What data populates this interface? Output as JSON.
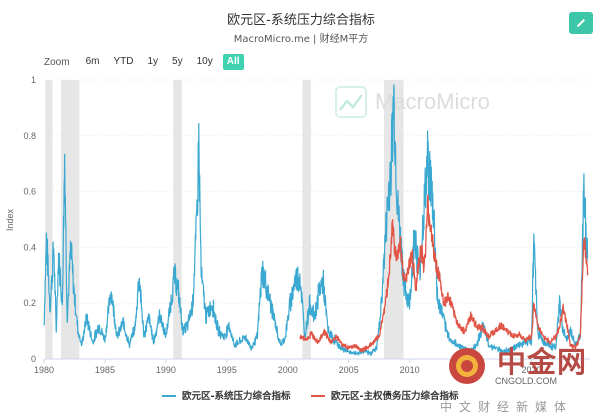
{
  "header": {
    "title": "欧元区-系统压力综合指标",
    "subtitle": "MacroMicro.me | 财经M平方"
  },
  "toolbar": {
    "zoom_label": "Zoom",
    "ranges": [
      {
        "label": "6m",
        "active": false
      },
      {
        "label": "YTD",
        "active": false
      },
      {
        "label": "1y",
        "active": false
      },
      {
        "label": "5y",
        "active": false
      },
      {
        "label": "10y",
        "active": false
      },
      {
        "label": "All",
        "active": true
      }
    ]
  },
  "watermark": {
    "brand": "MacroMicro",
    "logo_text": "中金网",
    "logo_url": "CNGOLD.COM",
    "footer_text": "中文财经新媒体"
  },
  "colors": {
    "series1": "#3aa8d0",
    "series2": "#e05546",
    "recession": "#e6e6e6",
    "accent": "#3ec6a8"
  },
  "chart_data": {
    "type": "line",
    "ylabel": "Index",
    "xlabel": "",
    "ylim": [
      0,
      1
    ],
    "xlim": [
      1980,
      2024.8
    ],
    "x_ticks": [
      1980,
      1985,
      1990,
      1995,
      2000,
      2005,
      2010,
      2015,
      2020
    ],
    "x_tick_labels": [
      "1980",
      "1985",
      "1990",
      "1995",
      "2000",
      "2005",
      "2010",
      "2015",
      "2020"
    ],
    "y_ticks": [
      0,
      0.2,
      0.4,
      0.6,
      0.8,
      1
    ],
    "y_tick_labels": [
      "0",
      "0.2",
      "0.4",
      "0.6",
      "0.8",
      "1"
    ],
    "legend_position": "bottom",
    "recession_bands": [
      [
        1980.1,
        1980.7
      ],
      [
        1981.4,
        1982.9
      ],
      [
        1990.6,
        1991.3
      ],
      [
        2001.2,
        2001.9
      ],
      [
        2007.9,
        2009.5
      ]
    ],
    "series": [
      {
        "name": "欧元区-系统压力综合指标",
        "x": [
          1980.0,
          1980.2,
          1980.5,
          1980.8,
          1981.0,
          1981.2,
          1981.5,
          1981.7,
          1981.9,
          1982.2,
          1982.5,
          1982.8,
          1983.1,
          1983.5,
          1984.0,
          1984.5,
          1985.0,
          1985.5,
          1986.0,
          1986.5,
          1987.0,
          1987.5,
          1987.8,
          1988.2,
          1988.6,
          1989.0,
          1989.5,
          1990.0,
          1990.4,
          1990.7,
          1991.0,
          1991.4,
          1991.8,
          1992.2,
          1992.5,
          1992.7,
          1992.9,
          1993.3,
          1993.8,
          1994.3,
          1994.8,
          1995.2,
          1995.6,
          1996.0,
          1996.5,
          1997.0,
          1997.5,
          1997.9,
          1998.3,
          1998.7,
          1999.0,
          1999.4,
          1999.8,
          2000.2,
          2000.6,
          2001.0,
          2001.4,
          2001.8,
          2002.2,
          2002.6,
          2002.9,
          2003.3,
          2003.8,
          2004.3,
          2004.8,
          2005.3,
          2005.8,
          2006.3,
          2006.8,
          2007.3,
          2007.6,
          2007.9,
          2008.2,
          2008.5,
          2008.7,
          2008.8,
          2009.0,
          2009.3,
          2009.6,
          2010.0,
          2010.4,
          2010.8,
          2011.2,
          2011.5,
          2011.8,
          2012.0,
          2012.3,
          2012.6,
          2013.0,
          2013.5,
          2014.0,
          2014.5,
          2015.0,
          2015.5,
          2016.0,
          2016.5,
          2017.0,
          2017.5,
          2018.0,
          2018.5,
          2019.0,
          2019.5,
          2020.0,
          2020.2,
          2020.5,
          2021.0,
          2021.5,
          2022.0,
          2022.3,
          2022.6,
          2022.9,
          2023.2,
          2023.6,
          2024.0,
          2024.3,
          2024.6
        ],
        "values": [
          0.12,
          0.43,
          0.18,
          0.4,
          0.1,
          0.38,
          0.2,
          0.74,
          0.15,
          0.4,
          0.22,
          0.1,
          0.05,
          0.15,
          0.06,
          0.12,
          0.07,
          0.25,
          0.08,
          0.13,
          0.05,
          0.12,
          0.3,
          0.08,
          0.15,
          0.06,
          0.16,
          0.08,
          0.2,
          0.3,
          0.25,
          0.1,
          0.12,
          0.2,
          0.45,
          0.77,
          0.3,
          0.15,
          0.2,
          0.1,
          0.08,
          0.12,
          0.05,
          0.06,
          0.08,
          0.04,
          0.08,
          0.32,
          0.25,
          0.18,
          0.12,
          0.05,
          0.08,
          0.2,
          0.28,
          0.3,
          0.08,
          0.2,
          0.15,
          0.25,
          0.28,
          0.1,
          0.07,
          0.04,
          0.03,
          0.02,
          0.02,
          0.03,
          0.02,
          0.04,
          0.15,
          0.35,
          0.55,
          0.72,
          0.93,
          0.8,
          0.55,
          0.4,
          0.25,
          0.2,
          0.45,
          0.3,
          0.55,
          0.72,
          0.6,
          0.5,
          0.2,
          0.18,
          0.1,
          0.06,
          0.05,
          0.04,
          0.03,
          0.05,
          0.12,
          0.05,
          0.04,
          0.03,
          0.03,
          0.04,
          0.05,
          0.06,
          0.06,
          0.45,
          0.1,
          0.06,
          0.05,
          0.04,
          0.2,
          0.1,
          0.07,
          0.1,
          0.05,
          0.08,
          0.6,
          0.36
        ],
        "color": "#3aa8d0"
      },
      {
        "name": "欧元区-主权债务压力综合指标",
        "x": [
          2001.0,
          2001.5,
          2002.0,
          2002.5,
          2003.0,
          2003.5,
          2004.0,
          2004.5,
          2005.0,
          2005.5,
          2006.0,
          2006.5,
          2007.0,
          2007.5,
          2008.0,
          2008.3,
          2008.6,
          2008.9,
          2009.2,
          2009.5,
          2009.8,
          2010.2,
          2010.5,
          2010.9,
          2011.2,
          2011.5,
          2011.8,
          2012.1,
          2012.4,
          2012.8,
          2013.2,
          2013.6,
          2014.0,
          2014.5,
          2015.0,
          2015.5,
          2016.0,
          2016.5,
          2017.0,
          2017.5,
          2018.0,
          2018.5,
          2019.0,
          2019.5,
          2020.0,
          2020.2,
          2020.5,
          2021.0,
          2021.5,
          2022.0,
          2022.3,
          2022.6,
          2022.9,
          2023.2,
          2023.6,
          2024.0,
          2024.3,
          2024.6
        ],
        "values": [
          0.08,
          0.07,
          0.09,
          0.06,
          0.1,
          0.06,
          0.08,
          0.05,
          0.04,
          0.05,
          0.03,
          0.04,
          0.06,
          0.08,
          0.2,
          0.3,
          0.48,
          0.35,
          0.42,
          0.3,
          0.3,
          0.38,
          0.25,
          0.4,
          0.33,
          0.54,
          0.45,
          0.35,
          0.3,
          0.2,
          0.22,
          0.17,
          0.12,
          0.1,
          0.15,
          0.12,
          0.11,
          0.08,
          0.1,
          0.12,
          0.1,
          0.08,
          0.09,
          0.07,
          0.08,
          0.2,
          0.12,
          0.08,
          0.06,
          0.08,
          0.12,
          0.18,
          0.12,
          0.05,
          0.04,
          0.08,
          0.45,
          0.3
        ],
        "color": "#e05546"
      }
    ]
  }
}
